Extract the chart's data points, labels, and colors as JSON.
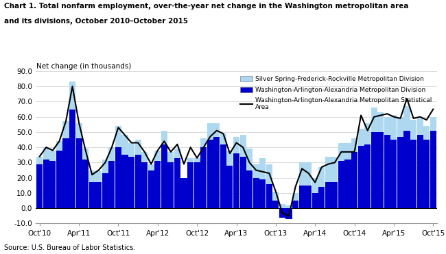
{
  "title_line1": "Chart 1. Total nonfarm employment, over-the-year net change in the Washington metropolitan area",
  "title_line2": "and its divisions, October 2010–October 2015",
  "ylabel": "Net change (in thousands)",
  "source": "Source: U.S. Bureau of Labor Statistics.",
  "ylim": [
    -10,
    90
  ],
  "yticks": [
    -10,
    0,
    10,
    20,
    30,
    40,
    50,
    60,
    70,
    80,
    90
  ],
  "color_light": "#add8f0",
  "color_dark": "#0000cc",
  "color_line": "#000000",
  "legend_labels": [
    "Silver Spring-Frederick-Rockville Metropolitan Division",
    "Washington-Arlington-Alexandria Metropolitan Division",
    "Washington-Arlington-Alexandria Metropolitan Statistical\nArea"
  ],
  "tick_labels": [
    "Oct'10",
    "Apr'11",
    "Oct'11",
    "Apr'12",
    "Oct'12",
    "Apr'13",
    "Oct'13",
    "Apr'14",
    "Oct'14",
    "Apr'15",
    "Oct'15"
  ],
  "tick_positions": [
    0,
    6,
    12,
    18,
    24,
    30,
    36,
    42,
    48,
    54,
    60
  ],
  "silver_spring": [
    5,
    8,
    7,
    6,
    11,
    18,
    10,
    7,
    8,
    8,
    9,
    9,
    14,
    13,
    9,
    10,
    7,
    4,
    7,
    9,
    7,
    6,
    0,
    3,
    3,
    6,
    11,
    9,
    7,
    10,
    11,
    14,
    14,
    9,
    14,
    13,
    6,
    3,
    2,
    5,
    15,
    15,
    10,
    13,
    17,
    17,
    12,
    11,
    9,
    11,
    14,
    16,
    13,
    12,
    16,
    13,
    16,
    13,
    11,
    9,
    9
  ],
  "washington_arlington": [
    29,
    32,
    31,
    38,
    46,
    65,
    46,
    32,
    17,
    17,
    23,
    31,
    40,
    35,
    34,
    35,
    30,
    25,
    31,
    42,
    30,
    33,
    20,
    30,
    30,
    40,
    45,
    47,
    42,
    28,
    36,
    34,
    25,
    20,
    19,
    16,
    5,
    -6,
    -7,
    5,
    15,
    15,
    10,
    14,
    17,
    17,
    31,
    32,
    37,
    41,
    42,
    50,
    50,
    48,
    45,
    47,
    51,
    45,
    48,
    45,
    51
  ],
  "msa_line": [
    34,
    40,
    38,
    44,
    57,
    80,
    56,
    38,
    22,
    25,
    30,
    40,
    53,
    48,
    43,
    43,
    37,
    29,
    38,
    44,
    37,
    42,
    29,
    40,
    33,
    40,
    47,
    51,
    49,
    36,
    43,
    40,
    30,
    25,
    24,
    23,
    11,
    -3,
    -5,
    14,
    26,
    23,
    17,
    27,
    29,
    30,
    37,
    37,
    37,
    61,
    51,
    60,
    61,
    62,
    60,
    59,
    72,
    59,
    60,
    58,
    65
  ]
}
